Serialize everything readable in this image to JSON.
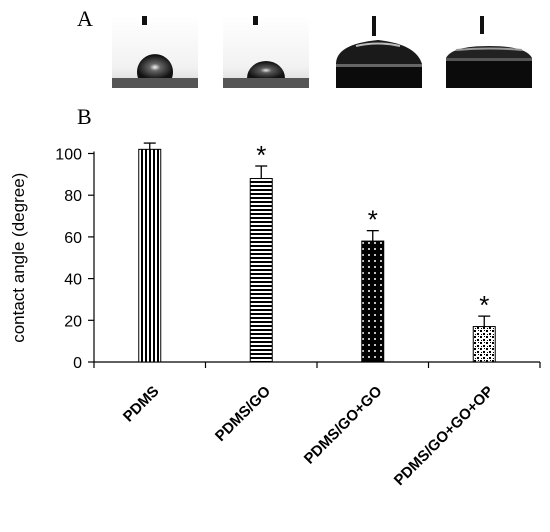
{
  "panels": {
    "a_label": "A",
    "b_label": "B"
  },
  "droplet_images": [
    {
      "sample": "PDMS",
      "contact_angle": 102
    },
    {
      "sample": "PDMS/GO",
      "contact_angle": 88
    },
    {
      "sample": "PDMS/GO+GO",
      "contact_angle": 58
    },
    {
      "sample": "PDMS/GO+GO+OP",
      "contact_angle": 17
    }
  ],
  "chart_data": {
    "type": "bar",
    "categories": [
      "PDMS",
      "PDMS/GO",
      "PDMS/GO+GO",
      "PDMS/GO+GO+OP"
    ],
    "values": [
      102,
      88,
      58,
      17
    ],
    "errors": [
      3,
      6,
      5,
      5
    ],
    "significance": [
      "",
      "*",
      "*",
      "*"
    ],
    "patterns": [
      "vertical-lines",
      "horizontal-lines",
      "dots-on-black",
      "speckle"
    ],
    "title": "",
    "xlabel": "",
    "ylabel": "contact angle (degree)",
    "ylim": [
      0,
      100
    ],
    "yticks": [
      0,
      20,
      40,
      60,
      80,
      100
    ],
    "grid": false,
    "legend": "none"
  }
}
